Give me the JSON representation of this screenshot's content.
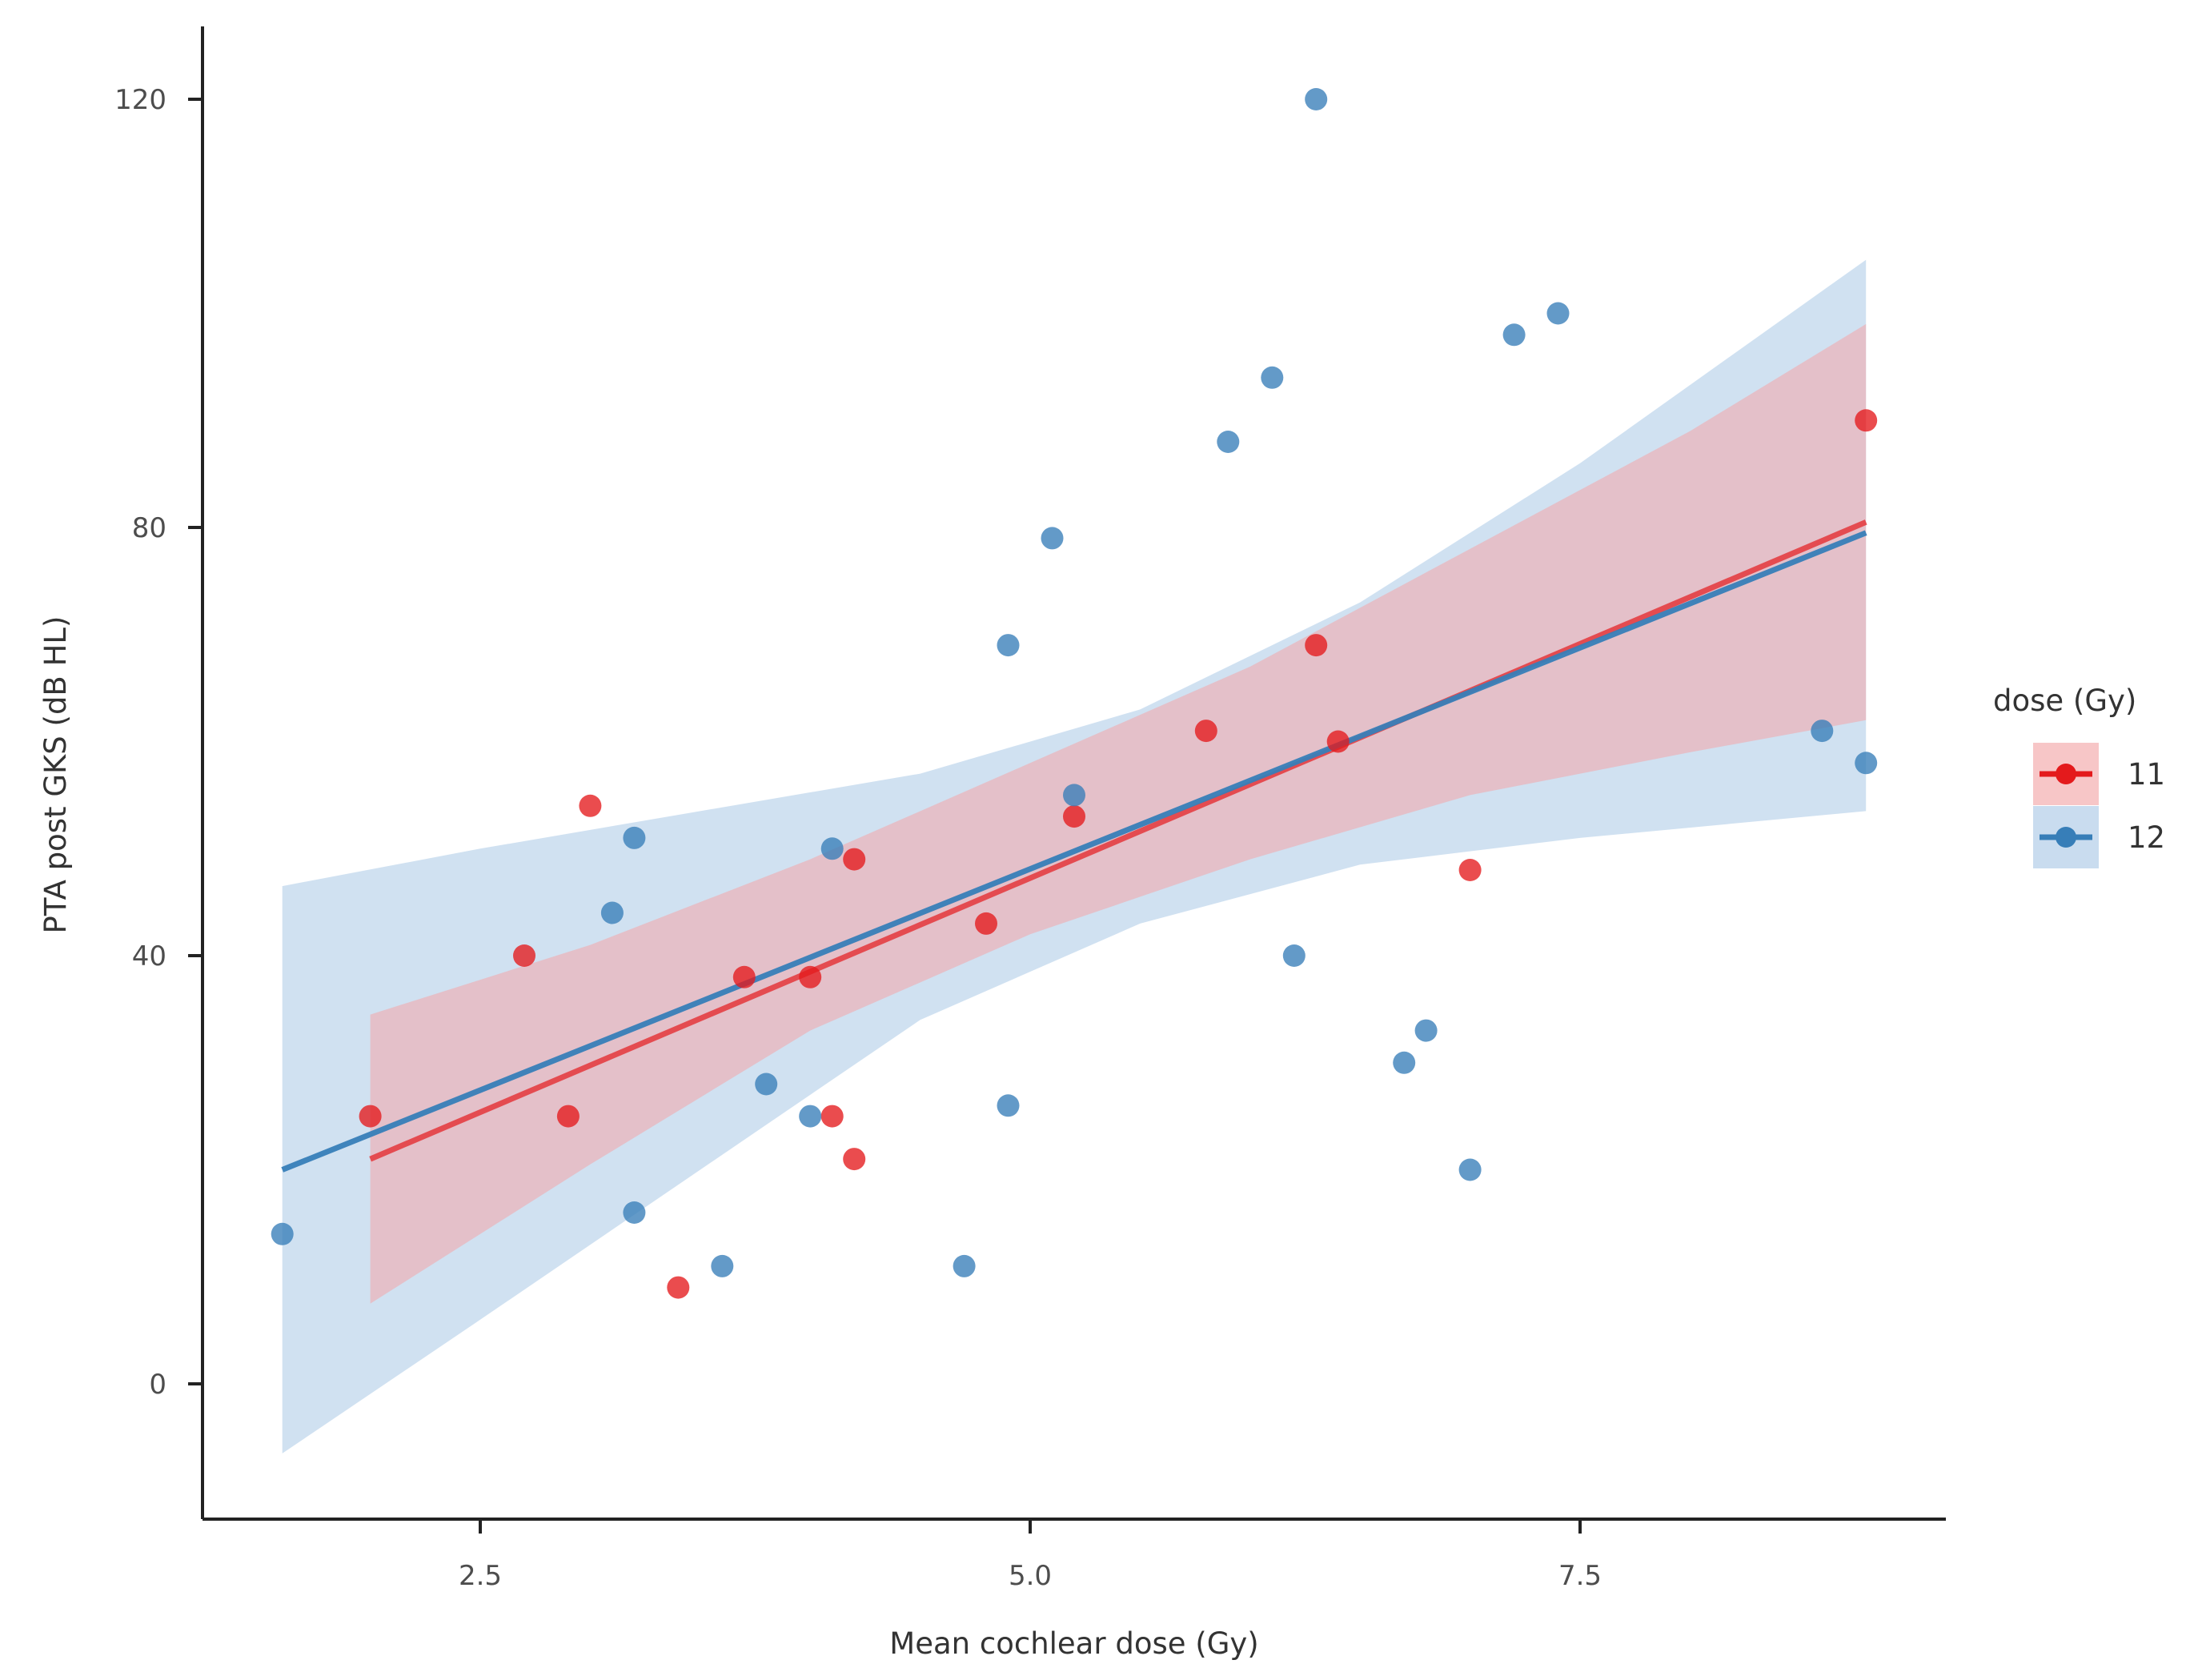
{
  "chart_data": {
    "type": "scatter",
    "title": "",
    "xlabel": "Mean cochlear dose (Gy)",
    "ylabel": "PTA post GKS (dB HL)",
    "xlim": [
      1.25,
      9.2
    ],
    "ylim": [
      -13,
      126
    ],
    "xticks": [
      2.5,
      5.0,
      7.5
    ],
    "xtick_labels": [
      "2.5",
      "5.0",
      "7.5"
    ],
    "yticks": [
      0,
      40,
      80,
      120
    ],
    "ytick_labels": [
      "0",
      "40",
      "80",
      "120"
    ],
    "grid": false,
    "legend": {
      "title": "dose (Gy)",
      "placement": "right",
      "entries": [
        "11",
        "12"
      ]
    },
    "series": [
      {
        "name": "11",
        "color": "#e41a1c",
        "band_color": "#f4a6a8",
        "points": [
          {
            "x": 2.0,
            "y": 25
          },
          {
            "x": 2.7,
            "y": 40
          },
          {
            "x": 2.9,
            "y": 25
          },
          {
            "x": 3.0,
            "y": 54
          },
          {
            "x": 3.4,
            "y": 9
          },
          {
            "x": 3.7,
            "y": 38
          },
          {
            "x": 4.0,
            "y": 38
          },
          {
            "x": 4.1,
            "y": 25
          },
          {
            "x": 4.2,
            "y": 21
          },
          {
            "x": 4.2,
            "y": 49
          },
          {
            "x": 4.8,
            "y": 43
          },
          {
            "x": 5.2,
            "y": 53
          },
          {
            "x": 5.8,
            "y": 61
          },
          {
            "x": 6.3,
            "y": 69
          },
          {
            "x": 6.4,
            "y": 60
          },
          {
            "x": 7.0,
            "y": 48
          },
          {
            "x": 8.8,
            "y": 90
          }
        ],
        "fit": {
          "x": [
            2.0,
            8.8
          ],
          "y": [
            21,
            80.5
          ]
        },
        "band": {
          "x": [
            2.0,
            3.0,
            4.0,
            5.0,
            6.0,
            7.0,
            8.0,
            8.8
          ],
          "upper": [
            34.5,
            41,
            49,
            58,
            67,
            78,
            89,
            99
          ],
          "lower": [
            7.5,
            20.5,
            33,
            42,
            49,
            55,
            59,
            62
          ]
        }
      },
      {
        "name": "12",
        "color": "#377eb8",
        "band_color": "#a9c8e5",
        "points": [
          {
            "x": 1.6,
            "y": 14
          },
          {
            "x": 3.1,
            "y": 44
          },
          {
            "x": 3.2,
            "y": 51
          },
          {
            "x": 3.2,
            "y": 16
          },
          {
            "x": 3.6,
            "y": 11
          },
          {
            "x": 3.8,
            "y": 28
          },
          {
            "x": 4.0,
            "y": 25
          },
          {
            "x": 4.1,
            "y": 50
          },
          {
            "x": 4.7,
            "y": 11
          },
          {
            "x": 4.9,
            "y": 69
          },
          {
            "x": 4.9,
            "y": 26
          },
          {
            "x": 5.1,
            "y": 79
          },
          {
            "x": 5.2,
            "y": 55
          },
          {
            "x": 5.9,
            "y": 88
          },
          {
            "x": 6.1,
            "y": 94
          },
          {
            "x": 6.2,
            "y": 40
          },
          {
            "x": 6.3,
            "y": 120
          },
          {
            "x": 6.7,
            "y": 30
          },
          {
            "x": 6.8,
            "y": 33
          },
          {
            "x": 7.0,
            "y": 20
          },
          {
            "x": 7.2,
            "y": 98
          },
          {
            "x": 7.4,
            "y": 100
          },
          {
            "x": 8.6,
            "y": 61
          },
          {
            "x": 8.8,
            "y": 58
          }
        ],
        "fit": {
          "x": [
            1.6,
            8.8
          ],
          "y": [
            20,
            79.5
          ]
        },
        "band": {
          "x": [
            1.6,
            2.5,
            3.5,
            4.5,
            5.5,
            6.5,
            7.5,
            8.8
          ],
          "upper": [
            46.5,
            50,
            53.5,
            57,
            63,
            73,
            86,
            105
          ],
          "lower": [
            -6.5,
            6,
            20,
            34,
            43,
            48.5,
            51,
            53.5
          ]
        }
      }
    ]
  }
}
